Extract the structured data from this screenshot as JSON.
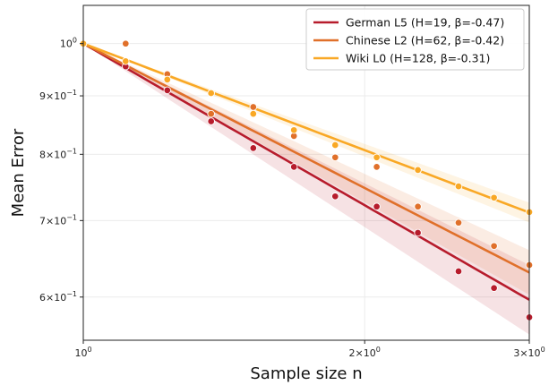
{
  "chart_data": {
    "type": "line",
    "title": "",
    "xlabel": "Sample size n",
    "ylabel": "Mean Error",
    "xscale": "log",
    "yscale": "log",
    "xlim": [
      1,
      3
    ],
    "ylim": [
      0.55,
      1.08
    ],
    "grid": true,
    "legend_position": "top-right",
    "x_ticks": [
      {
        "value": 1,
        "base": "10",
        "exp": "0"
      },
      {
        "value": 2,
        "mant": "2",
        "base": "10",
        "exp": "0"
      },
      {
        "value": 3,
        "mant": "3",
        "base": "10",
        "exp": "0"
      }
    ],
    "y_ticks": [
      {
        "value": 1.0,
        "base": "10",
        "exp": "0"
      },
      {
        "value": 0.9,
        "mant": "9",
        "base": "10",
        "exp": "−1"
      },
      {
        "value": 0.8,
        "mant": "8",
        "base": "10",
        "exp": "−1"
      },
      {
        "value": 0.7,
        "mant": "7",
        "base": "10",
        "exp": "−1"
      },
      {
        "value": 0.6,
        "mant": "6",
        "base": "10",
        "exp": "−1"
      }
    ],
    "series": [
      {
        "name": "German L5 (H=19, β=-0.47)",
        "color": "#b71c2c",
        "beta": -0.47,
        "band_width": 0.07,
        "x": [
          1.0,
          1.11,
          1.23,
          1.37,
          1.52,
          1.68,
          1.86,
          2.06,
          2.28,
          2.52,
          2.75,
          3.0
        ],
        "y": [
          1.0,
          0.955,
          0.91,
          0.855,
          0.81,
          0.78,
          0.735,
          0.72,
          0.683,
          0.632,
          0.611,
          0.576
        ]
      },
      {
        "name": "Chinese L2 (H=62, β=-0.42)",
        "color": "#e0702a",
        "beta": -0.42,
        "band_width": 0.045,
        "x": [
          1.0,
          1.11,
          1.23,
          1.37,
          1.52,
          1.68,
          1.86,
          2.06,
          2.28,
          2.52,
          2.75,
          3.0
        ],
        "y": [
          1.0,
          1.0,
          0.94,
          0.868,
          0.88,
          0.83,
          0.795,
          0.78,
          0.72,
          0.697,
          0.665,
          0.64
        ]
      },
      {
        "name": "Wiki L0 (H=128, β=-0.31)",
        "color": "#f9a825",
        "beta": -0.31,
        "band_width": 0.02,
        "x": [
          1.0,
          1.11,
          1.23,
          1.37,
          1.52,
          1.68,
          1.86,
          2.06,
          2.28,
          2.52,
          2.75,
          3.0
        ],
        "y": [
          1.0,
          0.965,
          0.93,
          0.905,
          0.868,
          0.84,
          0.815,
          0.795,
          0.775,
          0.75,
          0.733,
          0.712
        ]
      }
    ]
  }
}
